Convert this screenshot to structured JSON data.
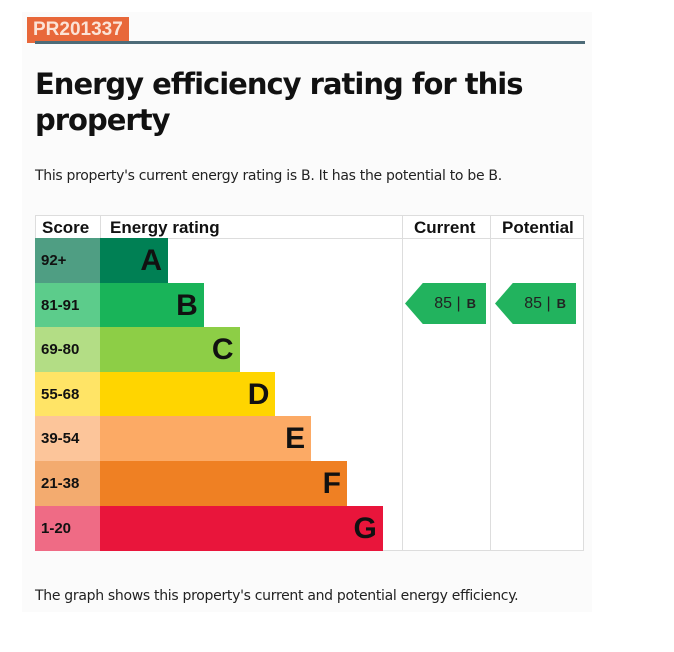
{
  "reference": "PR201337",
  "title": "Energy efficiency rating for this property",
  "intro": "This property's current energy rating is B. It has the potential to be B.",
  "footer": "The graph shows this property's current and potential energy efficiency.",
  "chart_data": {
    "type": "table",
    "headers": {
      "score": "Score",
      "rating": "Energy rating",
      "current": "Current",
      "potential": "Potential"
    },
    "bands": [
      {
        "score": "92+",
        "letter": "A",
        "color": "#008054",
        "tint": "#4f9e83"
      },
      {
        "score": "81-91",
        "letter": "B",
        "color": "#19b459",
        "tint": "#5ccc8b"
      },
      {
        "score": "69-80",
        "letter": "C",
        "color": "#8dce46",
        "tint": "#b3dd85"
      },
      {
        "score": "55-68",
        "letter": "D",
        "color": "#ffd500",
        "tint": "#ffe466"
      },
      {
        "score": "39-54",
        "letter": "E",
        "color": "#fcaa65",
        "tint": "#fcc59a"
      },
      {
        "score": "21-38",
        "letter": "F",
        "color": "#ef8023",
        "tint": "#f3ab6f"
      },
      {
        "score": "1-20",
        "letter": "G",
        "color": "#e9153b",
        "tint": "#ef6b85"
      }
    ],
    "current": {
      "value": "85",
      "letter": "B"
    },
    "potential": {
      "value": "85",
      "letter": "B"
    },
    "separator": "|"
  }
}
